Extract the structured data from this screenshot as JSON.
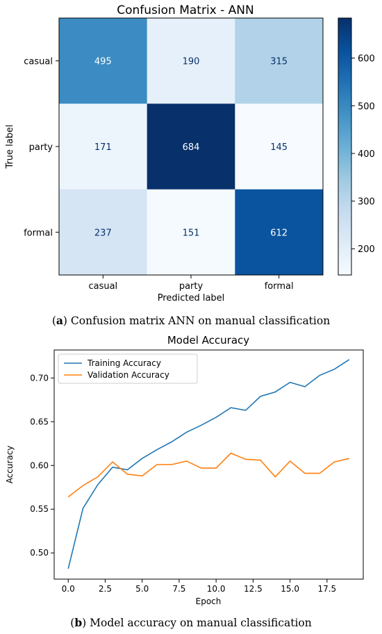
{
  "chart_data": [
    {
      "type": "heatmap",
      "title": "Confusion Matrix - ANN",
      "xlabel": "Predicted label",
      "ylabel": "True label",
      "x_categories": [
        "casual",
        "party",
        "formal"
      ],
      "y_categories": [
        "casual",
        "party",
        "formal"
      ],
      "matrix": [
        [
          495,
          190,
          315
        ],
        [
          171,
          684,
          145
        ],
        [
          237,
          151,
          612
        ]
      ],
      "colormap": "Blues",
      "vmin": 145,
      "vmax": 684,
      "colorbar_ticks": [
        200,
        300,
        400,
        500,
        600
      ]
    },
    {
      "type": "line",
      "title": "Model Accuracy",
      "xlabel": "Epoch",
      "ylabel": "Accuracy",
      "x": [
        0,
        1,
        2,
        3,
        4,
        5,
        6,
        7,
        8,
        9,
        10,
        11,
        12,
        13,
        14,
        15,
        16,
        17,
        18,
        19
      ],
      "series": [
        {
          "name": "Training Accuracy",
          "color": "#1f77b4",
          "values": [
            0.482,
            0.551,
            0.578,
            0.598,
            0.595,
            0.608,
            0.618,
            0.627,
            0.638,
            0.646,
            0.655,
            0.666,
            0.663,
            0.679,
            0.684,
            0.695,
            0.69,
            0.703,
            0.71,
            0.721
          ]
        },
        {
          "name": "Validation Accuracy",
          "color": "#ff7f0e",
          "values": [
            0.564,
            0.577,
            0.587,
            0.604,
            0.59,
            0.588,
            0.601,
            0.601,
            0.605,
            0.597,
            0.597,
            0.614,
            0.607,
            0.606,
            0.587,
            0.605,
            0.591,
            0.591,
            0.604,
            0.608
          ]
        }
      ],
      "xlim": [
        -0.95,
        19.95
      ],
      "ylim": [
        0.47,
        0.732
      ],
      "xticks": [
        "0.0",
        "2.5",
        "5.0",
        "7.5",
        "10.0",
        "12.5",
        "15.0",
        "17.5"
      ],
      "yticks": [
        "0.50",
        "0.55",
        "0.60",
        "0.65",
        "0.70"
      ],
      "legend": "top-left"
    }
  ],
  "captions": {
    "a_label": "(a)",
    "a_prefix": "(",
    "a_letter": "a",
    "a_suffix": ")",
    "a_text": " Confusion matrix ANN on manual classification",
    "b_prefix": "(",
    "b_letter": "b",
    "b_suffix": ")",
    "b_text": " Model accuracy on manual classification"
  }
}
